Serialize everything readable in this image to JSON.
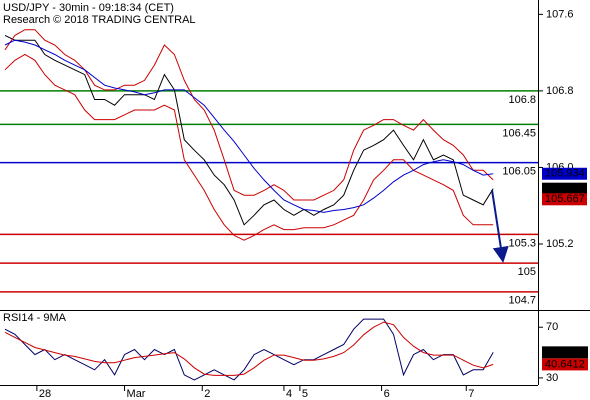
{
  "chart_data": [
    {
      "type": "line",
      "title": "USD/JPY - 30min - 09:18:34 (CET)",
      "subtitle": "Research © 2018 TRADING CENTRAL",
      "xlim": [
        -0.5,
        53.5
      ],
      "ylim": [
        104.51,
        107.75
      ],
      "yticks": [
        107.6,
        106.8,
        {
          "value": 106,
          "label": "106.0"
        },
        105.2
      ],
      "series": [
        {
          "color": "#000000",
          "values": [
            107.38,
            107.33,
            107.33,
            107.33,
            107.18,
            107.12,
            107.07,
            107.02,
            106.97,
            106.71,
            106.71,
            106.65,
            106.76,
            106.76,
            106.76,
            106.71,
            106.97,
            106.81,
            106.29,
            106.18,
            106.08,
            105.92,
            105.82,
            105.66,
            105.4,
            105.5,
            105.61,
            105.66,
            105.56,
            105.5,
            105.56,
            105.5,
            105.56,
            105.61,
            105.71,
            105.97,
            106.18,
            106.23,
            106.29,
            106.39,
            106.23,
            106.08,
            106.29,
            106.08,
            106.13,
            106.08,
            105.71,
            105.66,
            105.61,
            105.778
          ]
        },
        {
          "color": "#cc0000",
          "values": [
            107.23,
            107.38,
            107.44,
            107.44,
            107.33,
            107.28,
            107.18,
            107.12,
            107.02,
            106.86,
            106.81,
            106.81,
            106.86,
            106.86,
            106.91,
            107.07,
            107.28,
            107.18,
            106.91,
            106.71,
            106.6,
            106.39,
            106.08,
            105.76,
            105.71,
            105.71,
            105.76,
            105.82,
            105.76,
            105.66,
            105.66,
            105.66,
            105.71,
            105.76,
            105.87,
            106.18,
            106.39,
            106.44,
            106.5,
            106.5,
            106.44,
            106.39,
            106.5,
            106.39,
            106.29,
            106.23,
            106.13,
            105.97,
            105.97,
            105.87
          ]
        },
        {
          "color": "#cc0000",
          "values": [
            107.02,
            107.12,
            107.18,
            107.12,
            106.97,
            106.86,
            106.81,
            106.76,
            106.6,
            106.5,
            106.5,
            106.5,
            106.55,
            106.6,
            106.6,
            106.6,
            106.65,
            106.6,
            106.08,
            105.92,
            105.76,
            105.56,
            105.4,
            105.29,
            105.24,
            105.29,
            105.35,
            105.4,
            105.35,
            105.35,
            105.37,
            105.37,
            105.37,
            105.4,
            105.45,
            105.5,
            105.66,
            105.87,
            105.97,
            106.08,
            106.08,
            105.97,
            105.92,
            105.87,
            105.82,
            105.76,
            105.5,
            105.4,
            105.4,
            105.4
          ]
        },
        {
          "color": "#0000cc",
          "values": [
            107.28,
            107.33,
            107.31,
            107.28,
            107.23,
            107.18,
            107.12,
            107.07,
            107.02,
            106.94,
            106.86,
            106.83,
            106.81,
            106.79,
            106.76,
            106.78,
            106.81,
            106.81,
            106.81,
            106.73,
            106.65,
            106.52,
            106.39,
            106.27,
            106.13,
            105.99,
            105.87,
            105.76,
            105.66,
            105.61,
            105.56,
            105.55,
            105.53,
            105.55,
            105.56,
            105.58,
            105.61,
            105.68,
            105.76,
            105.85,
            105.92,
            105.97,
            106.03,
            106.06,
            106.08,
            106.06,
            106.03,
            105.97,
            105.92,
            105.934
          ]
        }
      ],
      "levels": [
        {
          "value": 106.8,
          "color": "#008000"
        },
        {
          "value": 106.45,
          "color": "#008000"
        },
        {
          "value": 106.05,
          "color": "#0000cc"
        },
        {
          "value": 105.3,
          "color": "#cc0000"
        },
        {
          "value": 105,
          "color": "#cc0000"
        },
        {
          "value": 104.7,
          "color": "#cc0000"
        }
      ],
      "price_tags": [
        {
          "value": 105.934,
          "color": "#0000cc"
        },
        {
          "value": 105.778,
          "color": "#000000"
        },
        {
          "value": 105.667,
          "color": "#cc0000"
        }
      ]
    },
    {
      "type": "line",
      "title": "RSI14 - 9MA",
      "xlim": [
        -0.5,
        53.5
      ],
      "ylim": [
        24.4,
        82.8
      ],
      "yticks": [
        70,
        30
      ],
      "xticks": [
        {
          "value": 3.2,
          "label": "28"
        },
        {
          "value": 12,
          "label": "Mar"
        },
        {
          "value": 19.8,
          "label": "2"
        },
        {
          "value": 28,
          "label": "4"
        },
        {
          "value": 29.6,
          "label": "5"
        },
        {
          "value": 37.8,
          "label": "6"
        },
        {
          "value": 46.3,
          "label": "7"
        }
      ],
      "series": [
        {
          "color": "#000066",
          "values": [
            68.4,
            64.4,
            56.4,
            48.4,
            52.4,
            44.4,
            48.4,
            44.4,
            40.4,
            36.4,
            44.4,
            32.4,
            48.4,
            52.4,
            44.4,
            52.4,
            48.4,
            52.4,
            32.4,
            28.4,
            32.4,
            36.4,
            32.4,
            28.4,
            36.4,
            48.4,
            52.4,
            48.4,
            44.4,
            40.4,
            44.4,
            44.4,
            48.4,
            52.4,
            56.4,
            68.4,
            76.4,
            76.4,
            76.4,
            64.4,
            32.4,
            48.4,
            52.4,
            44.4,
            48.4,
            48.4,
            32.4,
            36.4,
            36.4,
            50.161
          ]
        },
        {
          "color": "#cc0000",
          "values": [
            66,
            62,
            58,
            54,
            52,
            50,
            48,
            47,
            45,
            43,
            42,
            42,
            44,
            46,
            47,
            48,
            49,
            50,
            45,
            38,
            33,
            32,
            32,
            32,
            33,
            38,
            44,
            48,
            48,
            46,
            44,
            44,
            45,
            47,
            50,
            56,
            64,
            70,
            74,
            72,
            62,
            55,
            50,
            48,
            48,
            48,
            44,
            40,
            38,
            40.6412
          ]
        }
      ]
    }
  ]
}
